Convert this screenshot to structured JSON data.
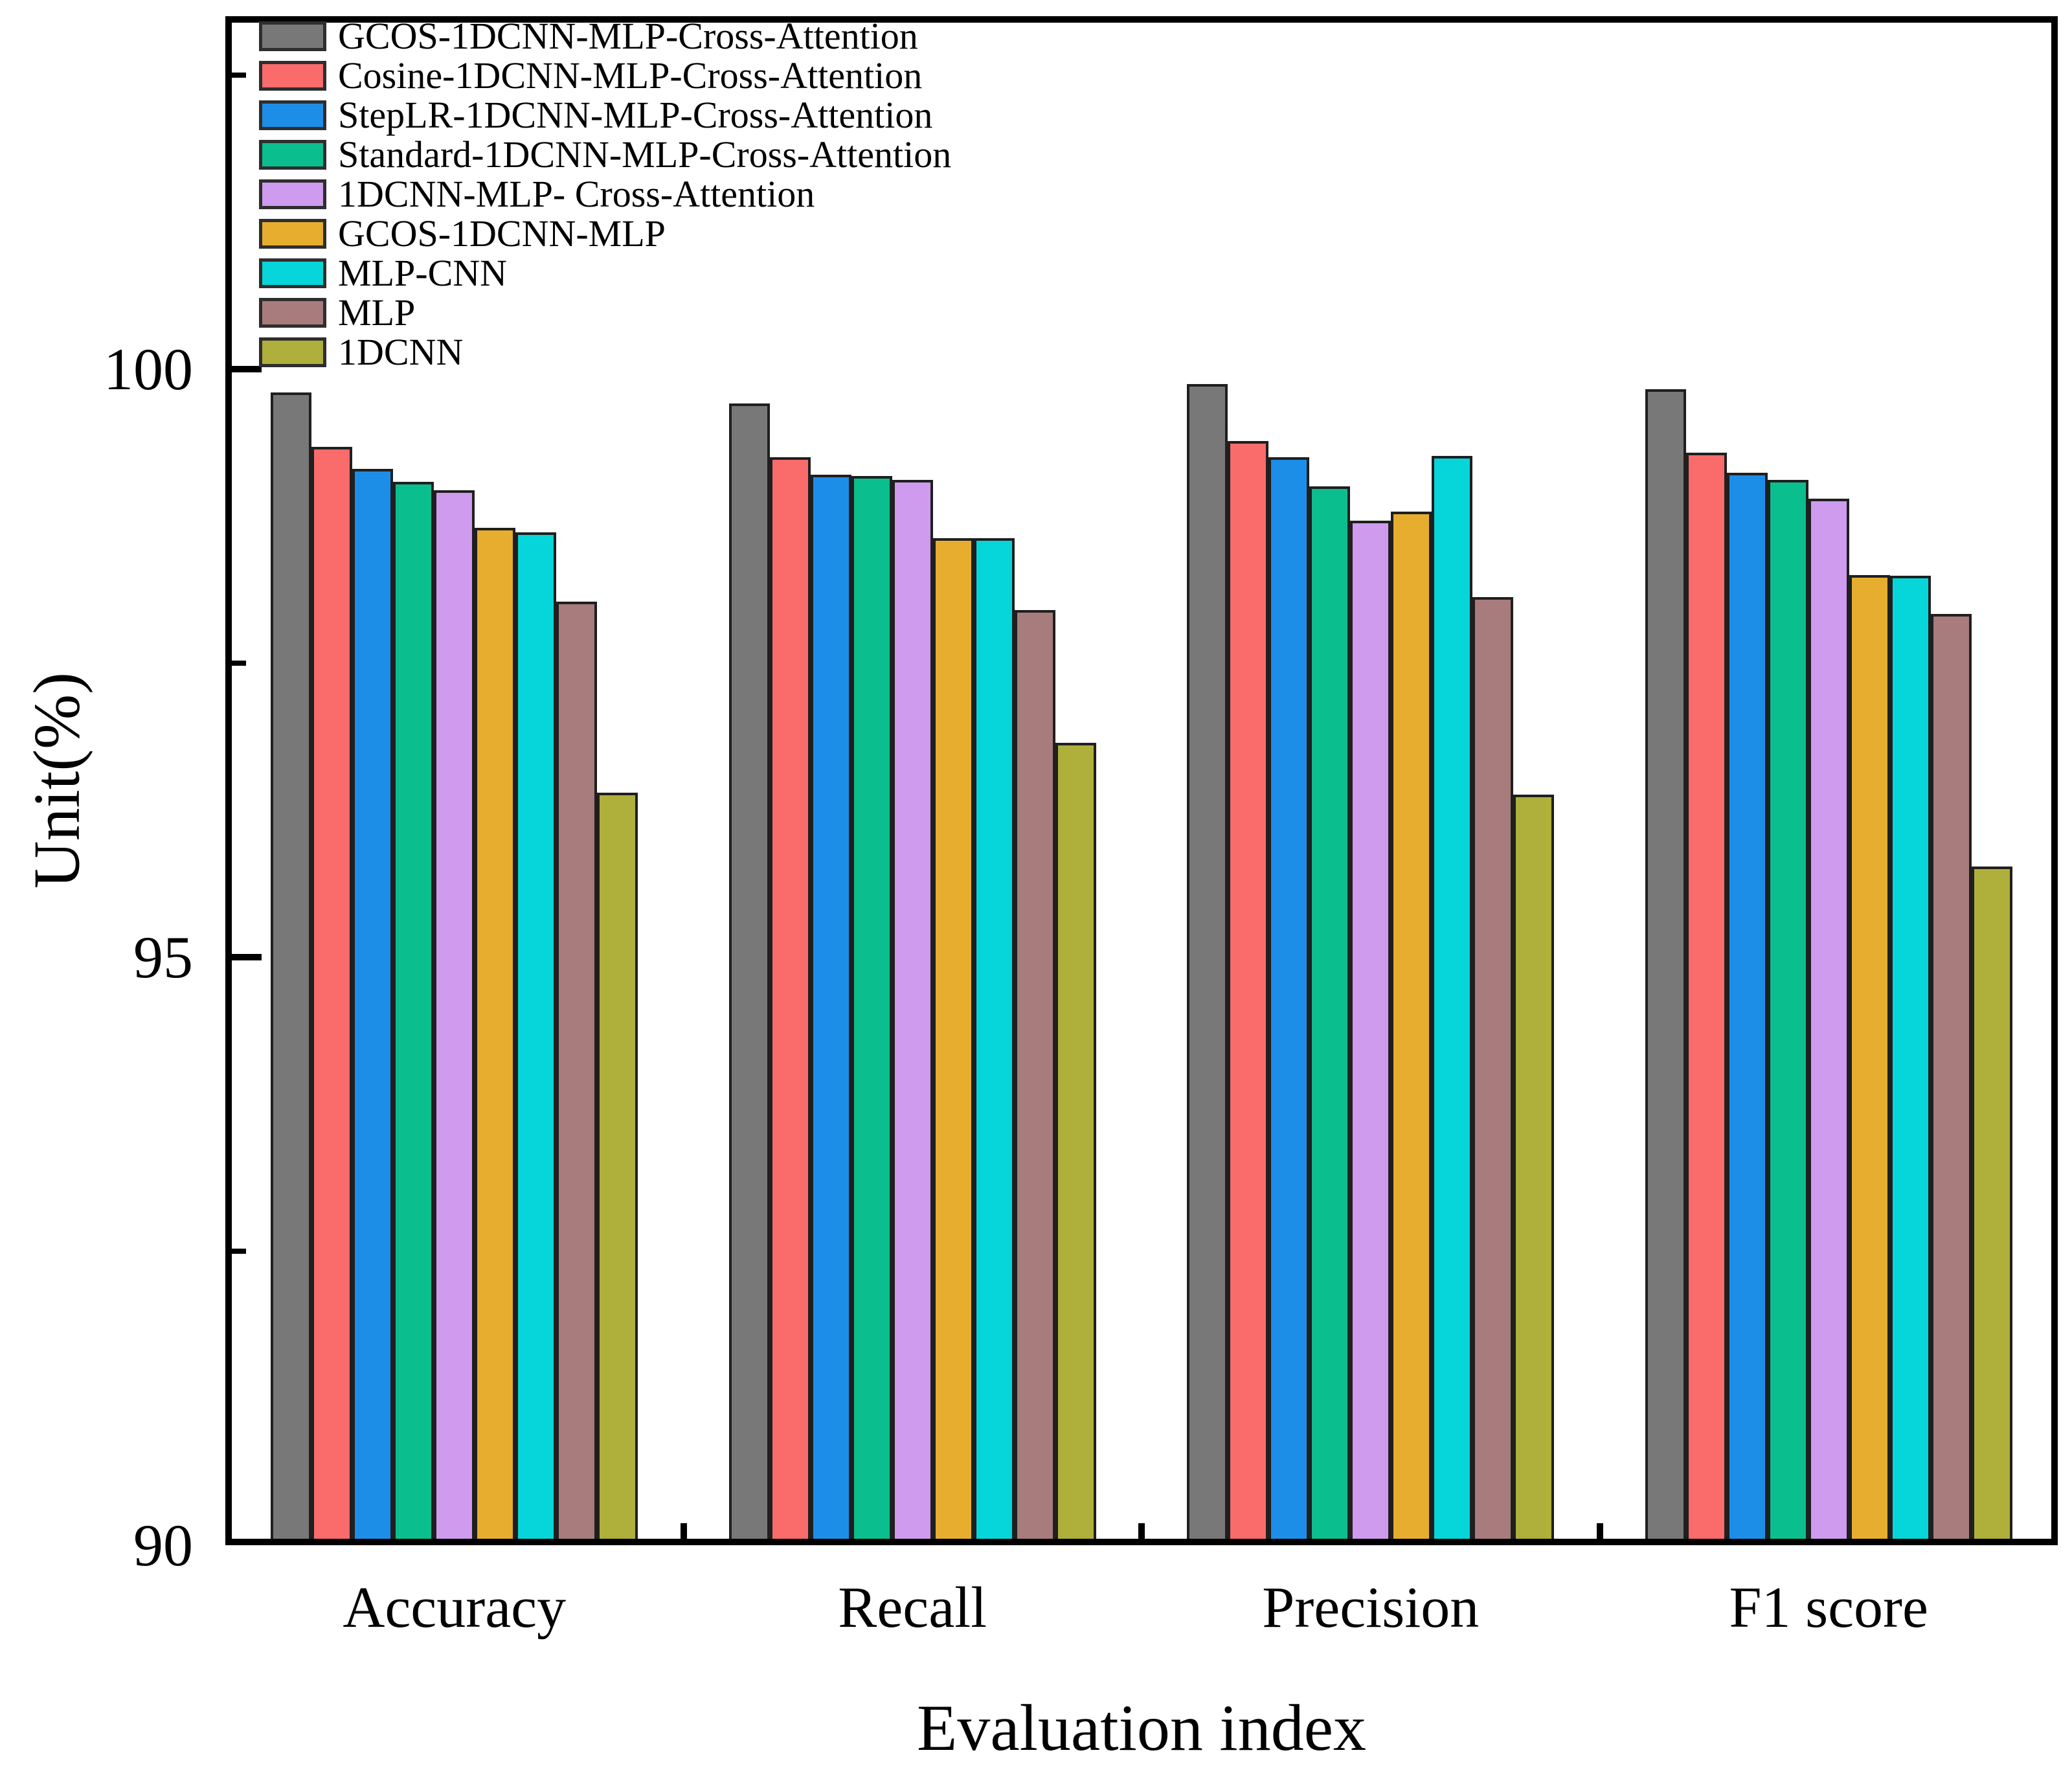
{
  "figure": {
    "background": "#ffffff",
    "axis_color": "#000000",
    "bar_edge_color": "#1f1f1f"
  },
  "chart_data": {
    "type": "bar",
    "title": "",
    "xlabel": "Evaluation index",
    "ylabel": "Unit(%)",
    "categories": [
      "Accuracy",
      "Recall",
      "Precision",
      "F1 score"
    ],
    "series": [
      {
        "name": "GCOS-1DCNN-MLP-Cross-Attention",
        "color": "#787878",
        "values": [
          99.8,
          99.71,
          99.87,
          99.83
        ]
      },
      {
        "name": "Cosine-1DCNN-MLP-Cross-Attention",
        "color": "#fa6b6b",
        "values": [
          99.34,
          99.25,
          99.39,
          99.29
        ]
      },
      {
        "name": "StepLR-1DCNN-MLP-Cross-Attention",
        "color": "#1d8ee8",
        "values": [
          99.15,
          99.1,
          99.25,
          99.12
        ]
      },
      {
        "name": "Standard-1DCNN-MLP-Cross-Attention",
        "color": "#0bbe8d",
        "values": [
          99.04,
          99.09,
          99.0,
          99.06
        ]
      },
      {
        "name": "1DCNN-MLP- Cross-Attention",
        "color": "#ce9bef",
        "values": [
          98.97,
          99.06,
          98.71,
          98.9
        ]
      },
      {
        "name": "GCOS-1DCNN-MLP",
        "color": "#e6ad2f",
        "values": [
          98.65,
          98.56,
          98.79,
          98.25
        ]
      },
      {
        "name": "MLP-CNN",
        "color": "#06d6d9",
        "values": [
          98.61,
          98.56,
          99.26,
          98.24
        ]
      },
      {
        "name": "MLP",
        "color": "#a87c7c",
        "values": [
          98.02,
          97.95,
          98.06,
          97.92
        ]
      },
      {
        "name": "1DCNN",
        "color": "#afaf3b",
        "values": [
          96.4,
          96.82,
          96.38,
          95.77
        ]
      }
    ],
    "ylim": [
      90,
      103
    ],
    "yticks_major": [
      100,
      95,
      90
    ],
    "ytick_labels": [
      "100",
      "95",
      "90"
    ],
    "yticks_minor": [
      102.5,
      97.5,
      92.5
    ],
    "grid": false,
    "legend_position": "upper-left"
  }
}
